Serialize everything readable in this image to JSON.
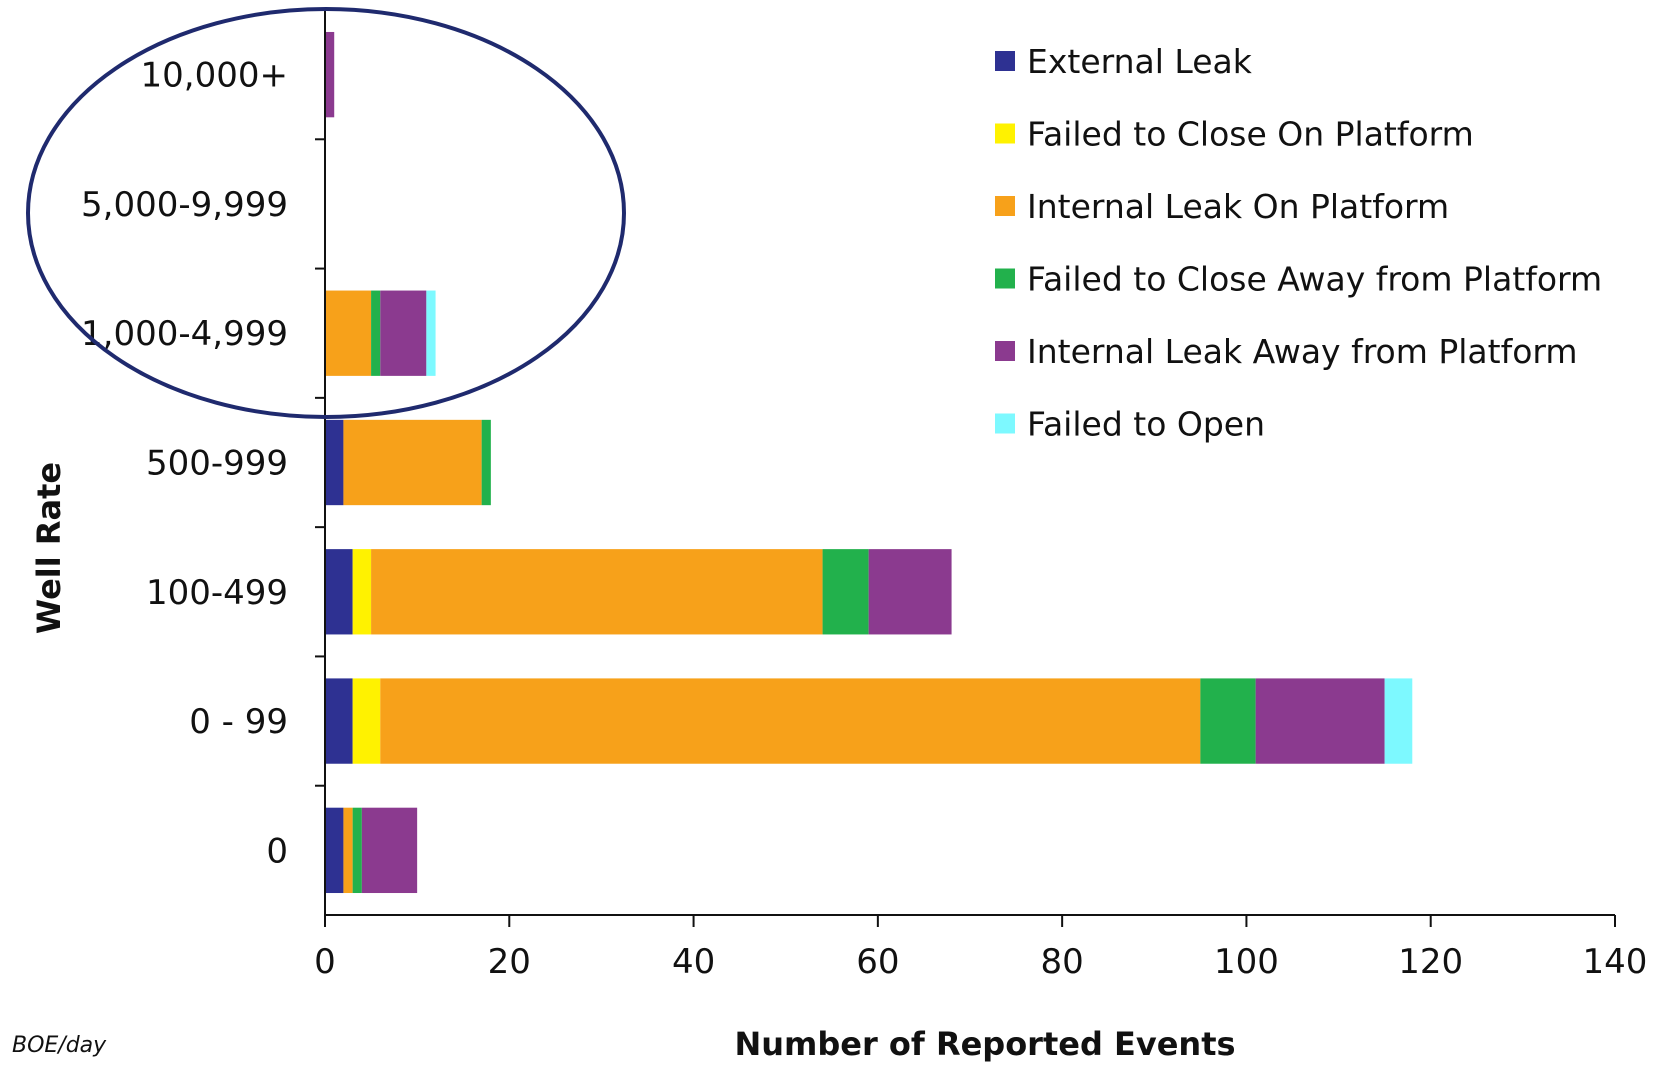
{
  "chart_data": {
    "type": "bar",
    "orientation": "horizontal",
    "stacked": true,
    "categories": [
      "10,000+",
      "5,000-9,999",
      "1,000-4,999",
      "500-999",
      "100-499",
      "0 - 99",
      "0"
    ],
    "series": [
      {
        "name": "External Leak",
        "color": "#2E3192",
        "values": [
          0,
          0,
          0,
          2,
          3,
          3,
          2
        ]
      },
      {
        "name": "Failed to Close On Platform",
        "color": "#FFF200",
        "values": [
          0,
          0,
          0,
          0,
          2,
          3,
          0
        ]
      },
      {
        "name": "Internal Leak On Platform",
        "color": "#F7A11A",
        "values": [
          0,
          0,
          5,
          15,
          49,
          89,
          1
        ]
      },
      {
        "name": "Failed to Close Away from Platform",
        "color": "#22B14C",
        "values": [
          0,
          0,
          1,
          1,
          5,
          6,
          1
        ]
      },
      {
        "name": "Internal Leak Away from Platform",
        "color": "#8B3A8F",
        "values": [
          1,
          0,
          5,
          0,
          9,
          14,
          6
        ]
      },
      {
        "name": "Failed to Open",
        "color": "#7DF9FF",
        "values": [
          0,
          0,
          1,
          0,
          0,
          3,
          0
        ]
      }
    ],
    "xlabel": "Number of Reported Events",
    "ylabel": "Well Rate",
    "xlim": [
      0,
      140
    ],
    "xticks": [
      0,
      20,
      40,
      60,
      80,
      100,
      120,
      140
    ],
    "grid": false,
    "legend": "top-right",
    "annotations": [
      "highlight-ellipse"
    ],
    "footnote": "BOE/day"
  }
}
